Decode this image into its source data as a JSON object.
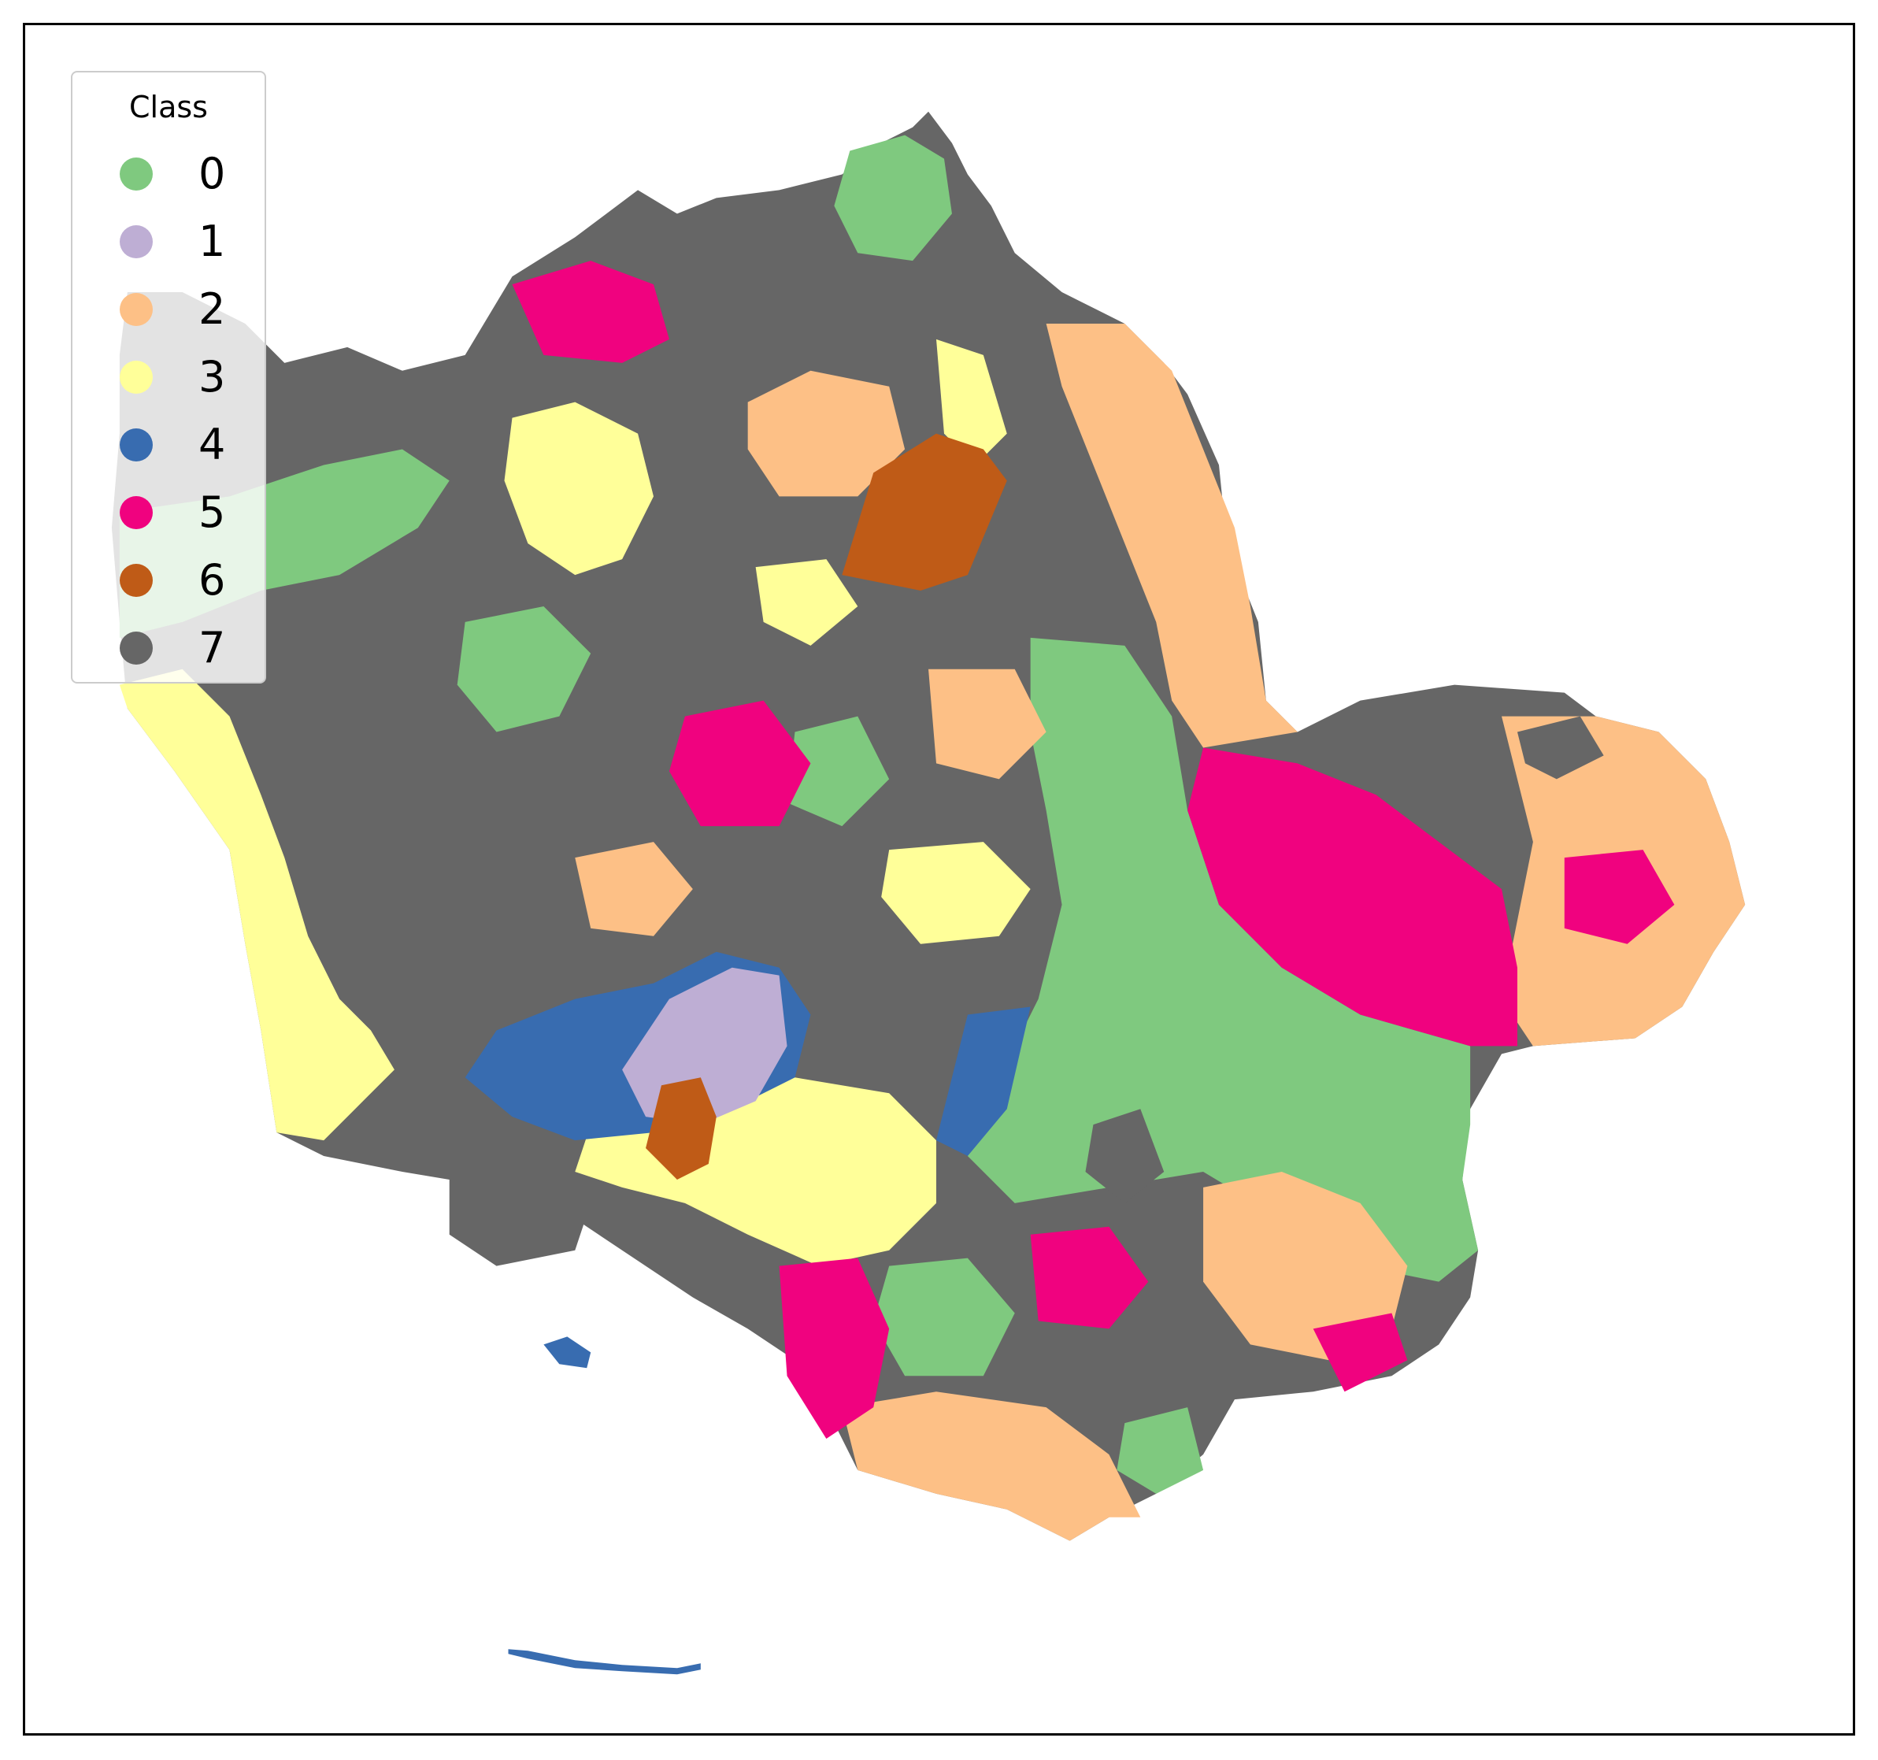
{
  "map": {
    "type": "choropleth",
    "legend": {
      "title": "Class",
      "placement": "upper-left",
      "entries": [
        {
          "label": "0",
          "color": "#7fc97f"
        },
        {
          "label": "1",
          "color": "#beaed4"
        },
        {
          "label": "2",
          "color": "#fdc086"
        },
        {
          "label": "3",
          "color": "#ffff99"
        },
        {
          "label": "4",
          "color": "#386cb0"
        },
        {
          "label": "5",
          "color": "#f0027f"
        },
        {
          "label": "6",
          "color": "#bf5b17"
        },
        {
          "label": "7",
          "color": "#666666"
        }
      ]
    },
    "border_color": "#000000",
    "background": "#ffffff"
  }
}
